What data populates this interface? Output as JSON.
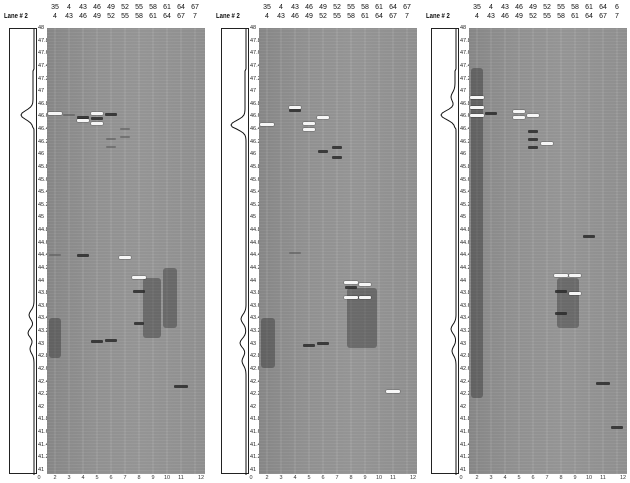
{
  "panels": [
    {
      "lane_label": "Lane # 2",
      "top_row1": [
        "35",
        "4",
        "43",
        "46",
        "49",
        "52",
        "55",
        "58",
        "61",
        "64",
        "67"
      ],
      "top_row2": [
        "4",
        "43",
        "46",
        "49",
        "52",
        "55",
        "58",
        "61",
        "64",
        "67",
        "7"
      ],
      "y_ticks": [
        "48",
        "47.8",
        "47.6",
        "47.4",
        "47.2",
        "47",
        "46.8",
        "46.6",
        "46.4",
        "46.2",
        "46",
        "45.8",
        "45.6",
        "45.4",
        "45.2",
        "45",
        "44.8",
        "44.6",
        "44.4",
        "44.2",
        "44",
        "43.8",
        "43.6",
        "43.4",
        "43.2",
        "43",
        "42.8",
        "42.6",
        "42.4",
        "42.2",
        "42",
        "41.8",
        "41.6",
        "41.4",
        "41.2",
        "41"
      ],
      "bottom": [
        "0",
        "2",
        "3",
        "4",
        "5",
        "6",
        "7",
        "8",
        "9",
        "10",
        "11",
        "12"
      ]
    },
    {
      "lane_label": "Lane # 2",
      "top_row1": [
        "35",
        "4",
        "43",
        "46",
        "49",
        "52",
        "55",
        "58",
        "61",
        "64",
        "67"
      ],
      "top_row2": [
        "4",
        "43",
        "46",
        "49",
        "52",
        "55",
        "58",
        "61",
        "64",
        "67",
        "7"
      ],
      "y_ticks": [
        "48",
        "47.8",
        "47.6",
        "47.4",
        "47.2",
        "47",
        "46.8",
        "46.6",
        "46.4",
        "46.2",
        "46",
        "45.8",
        "45.6",
        "45.4",
        "45.2",
        "45",
        "44.8",
        "44.6",
        "44.4",
        "44.2",
        "44",
        "43.8",
        "43.6",
        "43.4",
        "43.2",
        "43",
        "42.8",
        "42.6",
        "42.4",
        "42.2",
        "42",
        "41.8",
        "41.6",
        "41.4",
        "41.2",
        "41"
      ],
      "bottom": [
        "0",
        "2",
        "3",
        "4",
        "5",
        "6",
        "7",
        "8",
        "9",
        "10",
        "11",
        "12"
      ]
    },
    {
      "lane_label": "Lane # 2",
      "top_row1": [
        "35",
        "4",
        "43",
        "46",
        "49",
        "52",
        "55",
        "58",
        "61",
        "64",
        "6"
      ],
      "top_row2": [
        "4",
        "43",
        "46",
        "49",
        "52",
        "55",
        "58",
        "61",
        "64",
        "67",
        "7"
      ],
      "y_ticks": [
        "48",
        "47.8",
        "47.6",
        "47.4",
        "47.2",
        "47",
        "46.8",
        "46.6",
        "46.4",
        "46.2",
        "46",
        "45.8",
        "45.6",
        "45.4",
        "45.2",
        "45",
        "44.8",
        "44.6",
        "44.4",
        "44.2",
        "44",
        "43.8",
        "43.6",
        "43.4",
        "43.2",
        "43",
        "42.8",
        "42.6",
        "42.4",
        "42.2",
        "42",
        "41.8",
        "41.6",
        "41.4",
        "41.2",
        "41"
      ],
      "bottom": [
        "0",
        "2",
        "3",
        "4",
        "5",
        "6",
        "7",
        "8",
        "9",
        "10",
        "11",
        "12"
      ]
    }
  ]
}
